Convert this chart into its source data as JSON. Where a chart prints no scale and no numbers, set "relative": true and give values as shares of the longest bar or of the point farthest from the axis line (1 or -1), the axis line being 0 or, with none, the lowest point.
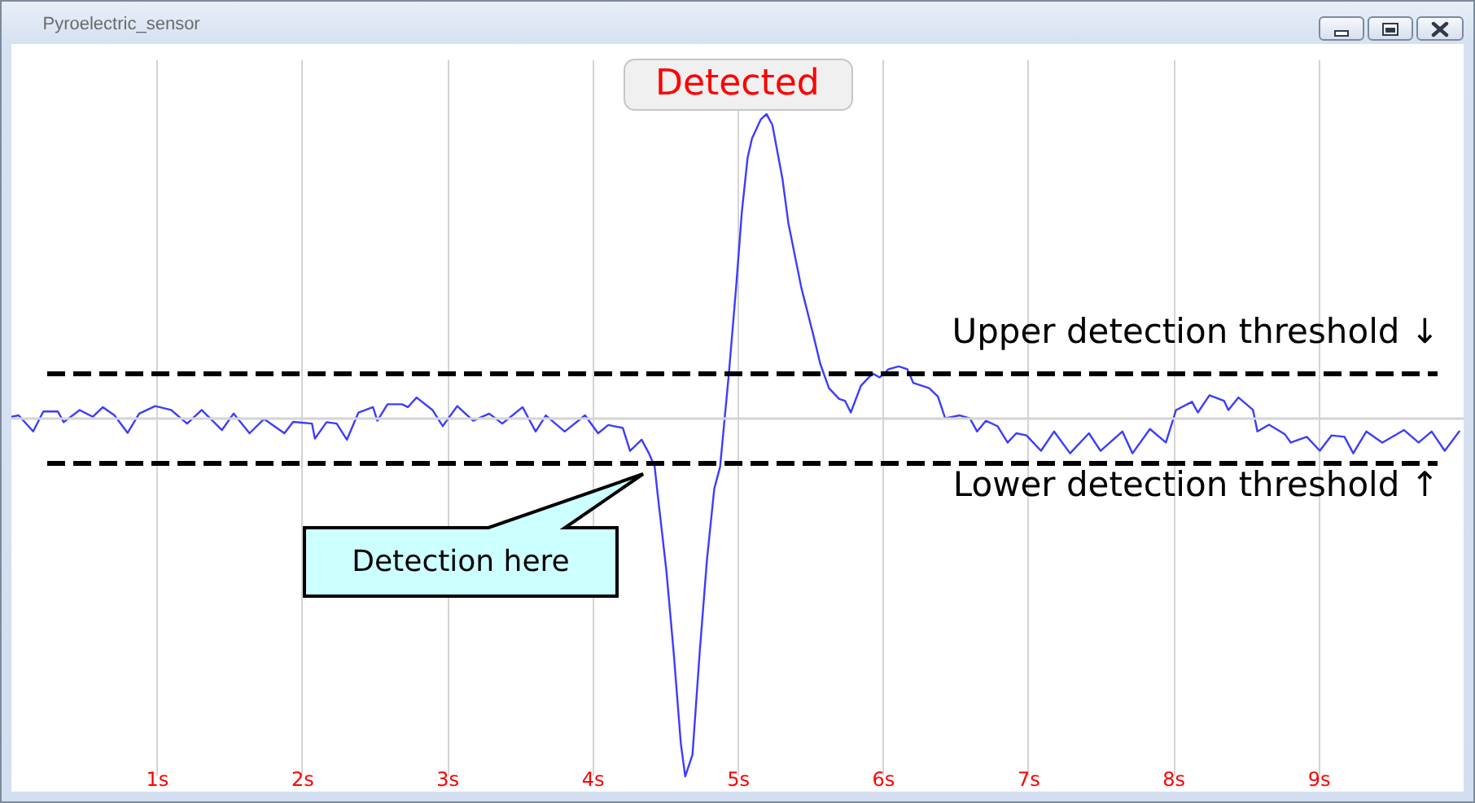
{
  "chart_data": {
    "type": "line",
    "title": "Pyroelectric_sensor",
    "relative": true,
    "x": [
      0,
      0.05,
      0.15,
      0.22,
      0.32,
      0.36,
      0.47,
      0.56,
      0.63,
      0.71,
      0.8,
      0.88,
      0.99,
      1.1,
      1.21,
      1.31,
      1.45,
      1.53,
      1.64,
      1.74,
      1.88,
      1.94,
      2.07,
      2.09,
      2.17,
      2.24,
      2.31,
      2.39,
      2.49,
      2.52,
      2.59,
      2.69,
      2.73,
      2.79,
      2.9,
      2.97,
      3.07,
      3.18,
      3.29,
      3.38,
      3.52,
      3.61,
      3.68,
      3.81,
      3.95,
      4.04,
      4.11,
      4.21,
      4.26,
      4.34,
      4.39,
      4.43,
      4.45,
      4.51,
      4.56,
      4.61,
      4.64,
      4.69,
      4.74,
      4.79,
      4.84,
      4.88,
      4.94,
      4.99,
      5.03,
      5.07,
      5.1,
      5.16,
      5.2,
      5.24,
      5.31,
      5.35,
      5.44,
      5.52,
      5.57,
      5.63,
      5.7,
      5.74,
      5.78,
      5.85,
      5.93,
      5.98,
      6.04,
      6.11,
      6.17,
      6.21,
      6.32,
      6.38,
      6.43,
      6.53,
      6.6,
      6.65,
      6.71,
      6.79,
      6.86,
      6.92,
      6.99,
      7.09,
      7.18,
      7.29,
      7.42,
      7.5,
      7.65,
      7.72,
      7.84,
      7.95,
      8.02,
      8.13,
      8.17,
      8.25,
      8.35,
      8.38,
      8.45,
      8.55,
      8.58,
      8.66,
      8.77,
      8.81,
      8.92,
      9.01,
      9.09,
      9.18,
      9.24,
      9.33,
      9.44,
      9.59,
      9.69,
      9.78,
      9.87,
      9.97
    ],
    "values": [
      0.005,
      0.009,
      -0.036,
      0.02,
      0.02,
      -0.01,
      0.024,
      0.005,
      0.032,
      0.009,
      -0.04,
      0.014,
      0.035,
      0.024,
      -0.014,
      0.024,
      -0.032,
      0.014,
      -0.041,
      -0.001,
      -0.041,
      -0.009,
      -0.014,
      -0.056,
      -0.01,
      -0.014,
      -0.059,
      0.017,
      0.032,
      -0.006,
      0.04,
      0.04,
      0.032,
      0.059,
      0.024,
      -0.021,
      0.035,
      -0.006,
      0.014,
      -0.014,
      0.032,
      -0.036,
      0.009,
      -0.036,
      0.009,
      -0.041,
      -0.018,
      -0.026,
      -0.09,
      -0.059,
      -0.097,
      -0.135,
      -0.211,
      -0.424,
      -0.651,
      -0.909,
      -1,
      -0.939,
      -0.651,
      -0.393,
      -0.196,
      -0.135,
      0.123,
      0.365,
      0.578,
      0.73,
      0.783,
      0.836,
      0.851,
      0.821,
      0.669,
      0.547,
      0.365,
      0.237,
      0.153,
      0.085,
      0.055,
      0.05,
      0.017,
      0.092,
      0.126,
      0.115,
      0.138,
      0.146,
      0.138,
      0.1,
      0.085,
      0.062,
      0.001,
      0.009,
      0.001,
      -0.036,
      -0.006,
      -0.021,
      -0.067,
      -0.041,
      -0.047,
      -0.09,
      -0.036,
      -0.097,
      -0.041,
      -0.09,
      -0.036,
      -0.097,
      -0.029,
      -0.067,
      0.024,
      0.047,
      0.017,
      0.065,
      0.05,
      0.024,
      0.059,
      0.024,
      -0.036,
      -0.017,
      -0.044,
      -0.067,
      -0.051,
      -0.09,
      -0.047,
      -0.051,
      -0.097,
      -0.036,
      -0.067,
      -0.032,
      -0.067,
      -0.036,
      -0.09,
      -0.036
    ],
    "color": "#3c3cff",
    "xlim": [
      0,
      10
    ],
    "xticks": [
      {
        "value": 1,
        "label": "1s"
      },
      {
        "value": 2,
        "label": "2s"
      },
      {
        "value": 3,
        "label": "3s"
      },
      {
        "value": 4,
        "label": "4s"
      },
      {
        "value": 5,
        "label": "5s"
      },
      {
        "value": 6,
        "label": "6s"
      },
      {
        "value": 7,
        "label": "7s"
      },
      {
        "value": 8,
        "label": "8s"
      },
      {
        "value": 9,
        "label": "9s"
      }
    ],
    "grid": "x",
    "ref_lines": [
      {
        "axis": "y",
        "value": 0,
        "color": "#d4d4d4",
        "line_style": "solid"
      },
      {
        "axis": "y",
        "value": 0.125,
        "label": "Upper detection threshold ↓",
        "color": "#000000",
        "line_style": "dashed"
      },
      {
        "axis": "y",
        "value": -0.125,
        "label": "Lower detection threshold ↑",
        "color": "#000000",
        "line_style": "dashed"
      }
    ],
    "annotations": [
      "Detected",
      "Detection here"
    ]
  }
}
